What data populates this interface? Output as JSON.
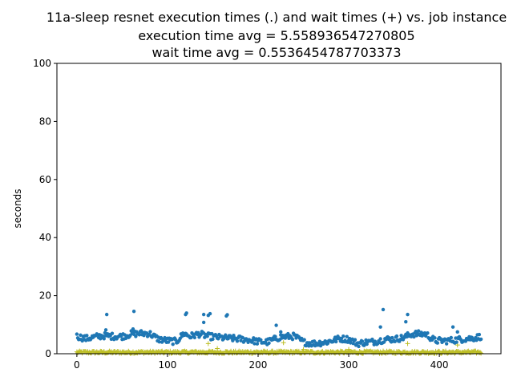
{
  "chart_data": {
    "type": "scatter",
    "title_lines": [
      "11a-sleep resnet execution times (.) and wait times (+) vs. job instance",
      "execution time avg = 5.558936547270805",
      "wait time avg = 0.5536454787703373"
    ],
    "xlabel": "",
    "ylabel": "seconds",
    "xlim": [
      -22,
      468
    ],
    "ylim": [
      0,
      100
    ],
    "xticks": [
      0,
      100,
      200,
      300,
      400
    ],
    "yticks": [
      0,
      20,
      40,
      60,
      80,
      100
    ],
    "grid": false,
    "colors": {
      "execution": "#1f77b4",
      "wait": "#bcbd22"
    },
    "series": [
      {
        "marker": "dot",
        "n": 447,
        "segments": [
          [
            0,
            6.0
          ],
          [
            10,
            5.2
          ],
          [
            20,
            5.8
          ],
          [
            30,
            6.2
          ],
          [
            40,
            6.0
          ],
          [
            50,
            6.0
          ],
          [
            60,
            6.8
          ],
          [
            70,
            7.0
          ],
          [
            80,
            7.0
          ],
          [
            90,
            5.0
          ],
          [
            100,
            4.5
          ],
          [
            110,
            4.2
          ],
          [
            118,
            7.0
          ],
          [
            125,
            6.0
          ],
          [
            135,
            6.8
          ],
          [
            145,
            6.0
          ],
          [
            160,
            5.5
          ],
          [
            175,
            5.2
          ],
          [
            190,
            4.8
          ],
          [
            200,
            4.2
          ],
          [
            210,
            4.0
          ],
          [
            225,
            5.8
          ],
          [
            240,
            6.0
          ],
          [
            250,
            4.0
          ],
          [
            260,
            3.5
          ],
          [
            275,
            4.0
          ],
          [
            290,
            5.2
          ],
          [
            300,
            5.0
          ],
          [
            310,
            3.5
          ],
          [
            320,
            4.0
          ],
          [
            330,
            4.2
          ],
          [
            340,
            5.0
          ],
          [
            350,
            5.0
          ],
          [
            360,
            5.5
          ],
          [
            370,
            6.8
          ],
          [
            385,
            6.8
          ],
          [
            395,
            4.5
          ],
          [
            410,
            4.5
          ],
          [
            425,
            5.0
          ],
          [
            440,
            5.5
          ],
          [
            446,
            6.0
          ]
        ],
        "outliers": [
          [
            33,
            13.5
          ],
          [
            63,
            14.6
          ],
          [
            120,
            13.5
          ],
          [
            121,
            14.0
          ],
          [
            140,
            13.5
          ],
          [
            145,
            13.2
          ],
          [
            147,
            13.8
          ],
          [
            165,
            13.0
          ],
          [
            166,
            13.4
          ],
          [
            220,
            9.8
          ],
          [
            335,
            9.2
          ],
          [
            338,
            15.2
          ],
          [
            363,
            11.0
          ],
          [
            365,
            13.5
          ],
          [
            415,
            9.2
          ],
          [
            32,
            8.2
          ],
          [
            62,
            8.5
          ],
          [
            140,
            10.8
          ],
          [
            225,
            7.5
          ],
          [
            420,
            7.5
          ]
        ]
      },
      {
        "marker": "plus",
        "n": 447,
        "base": 0.5,
        "outliers": [
          [
            145,
            3.5
          ],
          [
            228,
            3.8
          ],
          [
            365,
            3.5
          ],
          [
            420,
            3.0
          ],
          [
            155,
            1.8
          ],
          [
            250,
            1.5
          ],
          [
            300,
            1.5
          ]
        ]
      }
    ]
  }
}
